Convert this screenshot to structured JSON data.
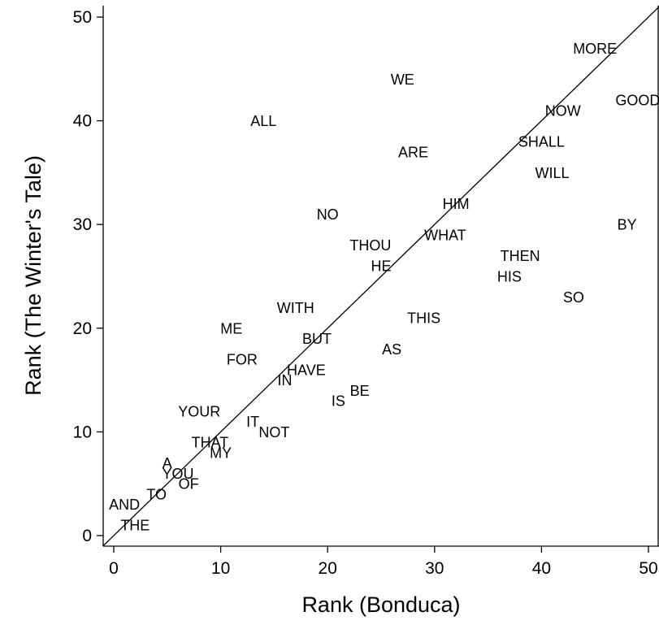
{
  "chart_data": {
    "type": "scatter",
    "title": "",
    "xlabel": "Rank (Bonduca)",
    "ylabel": "Rank (The Winter's Tale)",
    "xlim": [
      -1,
      51
    ],
    "ylim": [
      -1,
      51
    ],
    "xticks": [
      0,
      10,
      20,
      30,
      40,
      50
    ],
    "yticks": [
      0,
      10,
      20,
      30,
      40,
      50
    ],
    "reference_line": "y = x",
    "grid": false,
    "points": [
      {
        "label": "THE",
        "x": 2,
        "y": 1
      },
      {
        "label": "AND",
        "x": 1,
        "y": 3
      },
      {
        "label": "TO",
        "x": 4,
        "y": 4
      },
      {
        "label": "OF",
        "x": 7,
        "y": 5
      },
      {
        "label": "YOU",
        "x": 6,
        "y": 6
      },
      {
        "label": "A",
        "x": 5,
        "y": 7
      },
      {
        "label": "MY",
        "x": 10,
        "y": 8
      },
      {
        "label": "THAT",
        "x": 9,
        "y": 9
      },
      {
        "label": "IT",
        "x": 13,
        "y": 11
      },
      {
        "label": "NOT",
        "x": 15,
        "y": 10
      },
      {
        "label": "YOUR",
        "x": 8,
        "y": 12
      },
      {
        "label": "IS",
        "x": 21,
        "y": 13
      },
      {
        "label": "BE",
        "x": 23,
        "y": 14
      },
      {
        "label": "IN",
        "x": 16,
        "y": 15
      },
      {
        "label": "HAVE",
        "x": 18,
        "y": 16
      },
      {
        "label": "FOR",
        "x": 12,
        "y": 17
      },
      {
        "label": "AS",
        "x": 26,
        "y": 18
      },
      {
        "label": "BUT",
        "x": 19,
        "y": 19
      },
      {
        "label": "ME",
        "x": 11,
        "y": 20
      },
      {
        "label": "THIS",
        "x": 29,
        "y": 21
      },
      {
        "label": "WITH",
        "x": 17,
        "y": 22
      },
      {
        "label": "SO",
        "x": 43,
        "y": 23
      },
      {
        "label": "HIS",
        "x": 37,
        "y": 25
      },
      {
        "label": "HE",
        "x": 25,
        "y": 26
      },
      {
        "label": "THEN",
        "x": 38,
        "y": 27
      },
      {
        "label": "THOU",
        "x": 24,
        "y": 28
      },
      {
        "label": "WHAT",
        "x": 31,
        "y": 29
      },
      {
        "label": "BY",
        "x": 48,
        "y": 30
      },
      {
        "label": "NO",
        "x": 20,
        "y": 31
      },
      {
        "label": "HIM",
        "x": 32,
        "y": 32
      },
      {
        "label": "WILL",
        "x": 41,
        "y": 35
      },
      {
        "label": "ARE",
        "x": 28,
        "y": 37
      },
      {
        "label": "SHALL",
        "x": 40,
        "y": 38
      },
      {
        "label": "ALL",
        "x": 14,
        "y": 40
      },
      {
        "label": "NOW",
        "x": 42,
        "y": 41
      },
      {
        "label": "GOOD",
        "x": 49,
        "y": 42
      },
      {
        "label": "WE",
        "x": 27,
        "y": 44
      },
      {
        "label": "MORE",
        "x": 45,
        "y": 47
      }
    ]
  }
}
